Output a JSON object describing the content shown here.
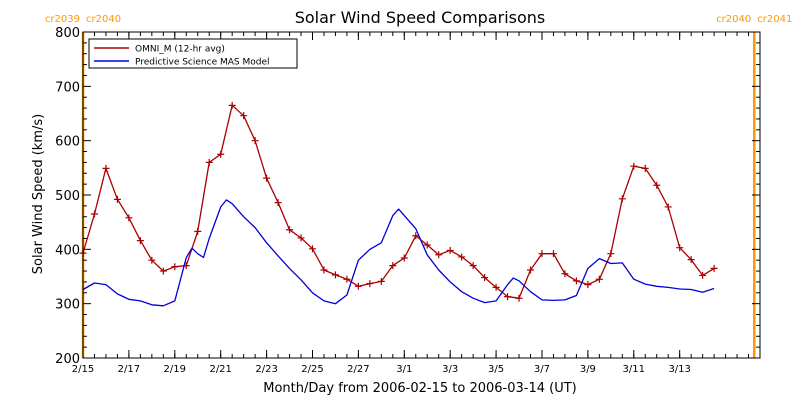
{
  "chart_data": {
    "type": "line",
    "title": "Solar Wind Speed Comparisons",
    "xlabel": "Month/Day from 2006-02-15 to 2006-03-14 (UT)",
    "ylabel": "Solar Wind Speed (km/s)",
    "xlim": [
      "2006-02-15T00:00",
      "2006-03-16T12:00"
    ],
    "ylim": [
      200,
      800
    ],
    "y_ticks": [
      200,
      300,
      400,
      500,
      600,
      700,
      800
    ],
    "x_ticks": [
      {
        "date": "2006-02-15",
        "label": "2/15"
      },
      {
        "date": "2006-02-17",
        "label": "2/17"
      },
      {
        "date": "2006-02-19",
        "label": "2/19"
      },
      {
        "date": "2006-02-21",
        "label": "2/21"
      },
      {
        "date": "2006-02-23",
        "label": "2/23"
      },
      {
        "date": "2006-02-25",
        "label": "2/25"
      },
      {
        "date": "2006-02-27",
        "label": "2/27"
      },
      {
        "date": "2006-03-01",
        "label": "3/1"
      },
      {
        "date": "2006-03-03",
        "label": "3/3"
      },
      {
        "date": "2006-03-05",
        "label": "3/5"
      },
      {
        "date": "2006-03-07",
        "label": "3/7"
      },
      {
        "date": "2006-03-09",
        "label": "3/9"
      },
      {
        "date": "2006-03-11",
        "label": "3/11"
      },
      {
        "date": "2006-03-13",
        "label": "3/13"
      }
    ],
    "carrington_markers": [
      {
        "date": "2006-02-15T00:00",
        "left_label": "cr2039",
        "right_label": "cr2040"
      },
      {
        "date": "2006-03-16T06:00",
        "left_label": "cr2040",
        "right_label": "cr2041"
      }
    ],
    "legend": {
      "position": "top-left"
    },
    "series": [
      {
        "name": "OMNI_M (12-hr avg)",
        "color": "#aa0000",
        "marker": "plus",
        "points": [
          [
            "2006-02-15T00:00",
            393
          ],
          [
            "2006-02-15T12:00",
            465
          ],
          [
            "2006-02-16T00:00",
            549
          ],
          [
            "2006-02-16T12:00",
            492
          ],
          [
            "2006-02-17T00:00",
            458
          ],
          [
            "2006-02-17T12:00",
            416
          ],
          [
            "2006-02-18T00:00",
            380
          ],
          [
            "2006-02-18T12:00",
            360
          ],
          [
            "2006-02-19T00:00",
            368
          ],
          [
            "2006-02-19T12:00",
            370
          ],
          [
            "2006-02-20T00:00",
            433
          ],
          [
            "2006-02-20T12:00",
            560
          ],
          [
            "2006-02-21T00:00",
            575
          ],
          [
            "2006-02-21T12:00",
            665
          ],
          [
            "2006-02-22T00:00",
            646
          ],
          [
            "2006-02-22T12:00",
            600
          ],
          [
            "2006-02-23T00:00",
            531
          ],
          [
            "2006-02-23T12:00",
            486
          ],
          [
            "2006-02-24T00:00",
            436
          ],
          [
            "2006-02-24T12:00",
            421
          ],
          [
            "2006-02-25T00:00",
            401
          ],
          [
            "2006-02-25T12:00",
            362
          ],
          [
            "2006-02-26T00:00",
            353
          ],
          [
            "2006-02-26T12:00",
            345
          ],
          [
            "2006-02-27T00:00",
            332
          ],
          [
            "2006-02-27T12:00",
            337
          ],
          [
            "2006-02-28T00:00",
            341
          ],
          [
            "2006-02-28T12:00",
            370
          ],
          [
            "2006-03-01T00:00",
            384
          ],
          [
            "2006-03-01T12:00",
            425
          ],
          [
            "2006-03-02T00:00",
            408
          ],
          [
            "2006-03-02T12:00",
            390
          ],
          [
            "2006-03-03T00:00",
            398
          ],
          [
            "2006-03-03T12:00",
            386
          ],
          [
            "2006-03-04T00:00",
            370
          ],
          [
            "2006-03-04T12:00",
            348
          ],
          [
            "2006-03-05T00:00",
            330
          ],
          [
            "2006-03-05T12:00",
            313
          ],
          [
            "2006-03-06T00:00",
            310
          ],
          [
            "2006-03-06T12:00",
            362
          ],
          [
            "2006-03-07T00:00",
            392
          ],
          [
            "2006-03-07T12:00",
            392
          ],
          [
            "2006-03-08T00:00",
            355
          ],
          [
            "2006-03-08T12:00",
            342
          ],
          [
            "2006-03-09T00:00",
            335
          ],
          [
            "2006-03-09T12:00",
            345
          ],
          [
            "2006-03-10T00:00",
            392
          ],
          [
            "2006-03-10T12:00",
            493
          ],
          [
            "2006-03-11T00:00",
            553
          ],
          [
            "2006-03-11T12:00",
            549
          ],
          [
            "2006-03-12T00:00",
            518
          ],
          [
            "2006-03-12T12:00",
            478
          ],
          [
            "2006-03-13T00:00",
            403
          ],
          [
            "2006-03-13T12:00",
            381
          ],
          [
            "2006-03-14T00:00",
            352
          ],
          [
            "2006-03-14T12:00",
            365
          ]
        ]
      },
      {
        "name": "Predictive Science MAS Model",
        "color": "#0000dd",
        "marker": "none",
        "points": [
          [
            "2006-02-15T00:00",
            326
          ],
          [
            "2006-02-15T12:00",
            338
          ],
          [
            "2006-02-16T00:00",
            335
          ],
          [
            "2006-02-16T12:00",
            318
          ],
          [
            "2006-02-17T00:00",
            308
          ],
          [
            "2006-02-17T12:00",
            305
          ],
          [
            "2006-02-18T00:00",
            298
          ],
          [
            "2006-02-18T12:00",
            296
          ],
          [
            "2006-02-19T00:00",
            305
          ],
          [
            "2006-02-19T12:00",
            385
          ],
          [
            "2006-02-19T18:00",
            402
          ],
          [
            "2006-02-20T00:00",
            392
          ],
          [
            "2006-02-20T06:00",
            385
          ],
          [
            "2006-02-20T12:00",
            420
          ],
          [
            "2006-02-21T00:00",
            478
          ],
          [
            "2006-02-21T06:00",
            491
          ],
          [
            "2006-02-21T12:00",
            484
          ],
          [
            "2006-02-22T00:00",
            460
          ],
          [
            "2006-02-22T12:00",
            440
          ],
          [
            "2006-02-23T00:00",
            412
          ],
          [
            "2006-02-23T12:00",
            388
          ],
          [
            "2006-02-24T00:00",
            365
          ],
          [
            "2006-02-24T12:00",
            344
          ],
          [
            "2006-02-25T00:00",
            320
          ],
          [
            "2006-02-25T12:00",
            305
          ],
          [
            "2006-02-26T00:00",
            300
          ],
          [
            "2006-02-26T12:00",
            316
          ],
          [
            "2006-02-27T00:00",
            380
          ],
          [
            "2006-02-27T12:00",
            400
          ],
          [
            "2006-02-28T00:00",
            412
          ],
          [
            "2006-02-28T12:00",
            462
          ],
          [
            "2006-02-28T18:00",
            474
          ],
          [
            "2006-03-01T00:00",
            462
          ],
          [
            "2006-03-01T12:00",
            438
          ],
          [
            "2006-03-02T00:00",
            390
          ],
          [
            "2006-03-02T12:00",
            362
          ],
          [
            "2006-03-03T00:00",
            340
          ],
          [
            "2006-03-03T12:00",
            322
          ],
          [
            "2006-03-04T00:00",
            310
          ],
          [
            "2006-03-04T12:00",
            302
          ],
          [
            "2006-03-05T00:00",
            305
          ],
          [
            "2006-03-05T12:00",
            335
          ],
          [
            "2006-03-05T18:00",
            347
          ],
          [
            "2006-03-06T00:00",
            342
          ],
          [
            "2006-03-06T12:00",
            322
          ],
          [
            "2006-03-07T00:00",
            307
          ],
          [
            "2006-03-07T12:00",
            306
          ],
          [
            "2006-03-08T00:00",
            307
          ],
          [
            "2006-03-08T12:00",
            315
          ],
          [
            "2006-03-09T00:00",
            365
          ],
          [
            "2006-03-09T12:00",
            383
          ],
          [
            "2006-03-10T00:00",
            374
          ],
          [
            "2006-03-10T12:00",
            375
          ],
          [
            "2006-03-11T00:00",
            345
          ],
          [
            "2006-03-11T12:00",
            336
          ],
          [
            "2006-03-12T00:00",
            332
          ],
          [
            "2006-03-12T12:00",
            330
          ],
          [
            "2006-03-13T00:00",
            327
          ],
          [
            "2006-03-13T12:00",
            326
          ],
          [
            "2006-03-14T00:00",
            321
          ],
          [
            "2006-03-14T12:00",
            328
          ]
        ]
      }
    ]
  }
}
